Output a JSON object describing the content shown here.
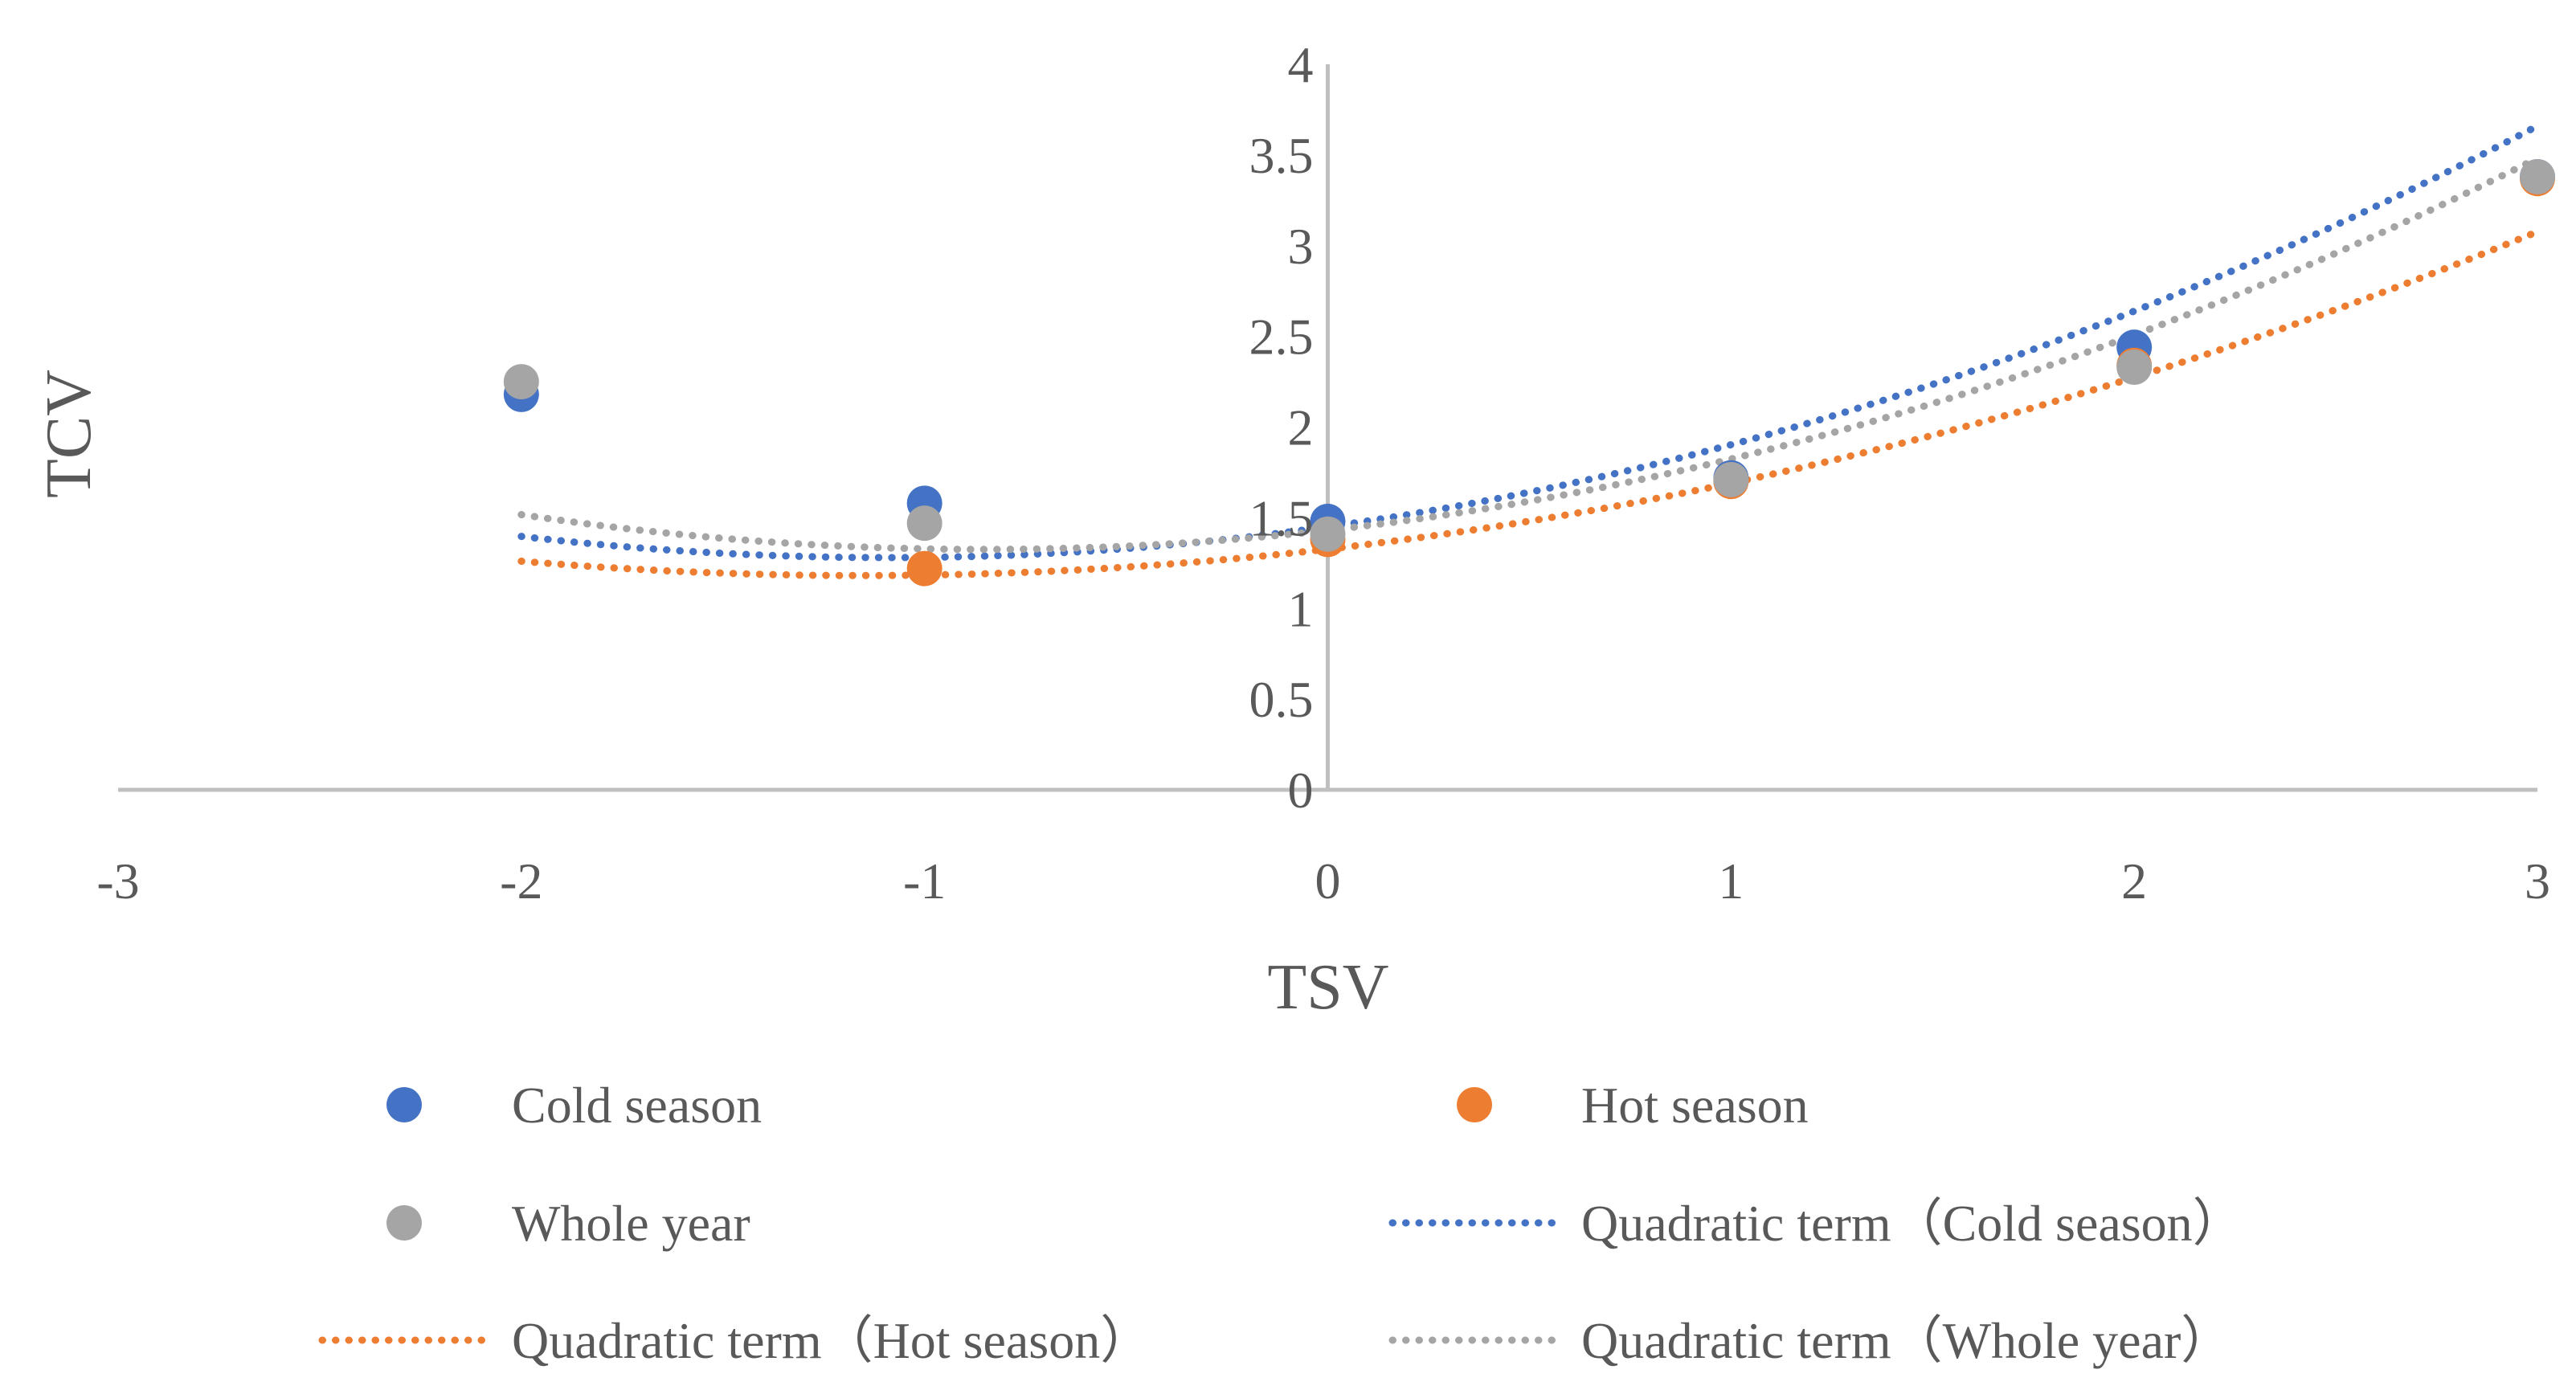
{
  "chart_data": {
    "type": "scatter",
    "title": "",
    "xlabel": "TSV",
    "ylabel": "TCV",
    "xlim": [
      -3,
      3
    ],
    "ylim": [
      0,
      4
    ],
    "x_ticks": [
      "-3",
      "-2",
      "-1",
      "0",
      "1",
      "2",
      "3"
    ],
    "y_ticks": [
      "0",
      "0.5",
      "1",
      "1.5",
      "2",
      "2.5",
      "3",
      "3.5",
      "4"
    ],
    "grid": false,
    "legend_position": "bottom",
    "series": [
      {
        "name": "Cold season",
        "kind": "points",
        "color": "#4472C4",
        "x": [
          -2,
          -1,
          0,
          1,
          2,
          3
        ],
        "y": [
          2.18,
          1.58,
          1.48,
          1.72,
          2.44,
          3.38
        ]
      },
      {
        "name": "Hot season",
        "kind": "points",
        "color": "#ED7D31",
        "x": [
          -1,
          0,
          1,
          2,
          3
        ],
        "y": [
          1.22,
          1.38,
          1.7,
          2.34,
          3.37
        ]
      },
      {
        "name": "Whole year",
        "kind": "points",
        "color": "#A5A5A5",
        "x": [
          -2,
          -1,
          0,
          1,
          2,
          3
        ],
        "y": [
          2.25,
          1.47,
          1.41,
          1.71,
          2.33,
          3.38
        ]
      }
    ],
    "trendlines": [
      {
        "name": "Quadratic term（Cold season）",
        "color": "#4472C4",
        "coefficients": {
          "a": 0.142,
          "b": 0.3105,
          "c": 1.45
        },
        "x_range": [
          -2,
          3
        ]
      },
      {
        "name": "Quadratic term（Hot season）",
        "color": "#ED7D31",
        "coefficients": {
          "a": 0.11,
          "b": 0.2533,
          "c": 1.327
        },
        "x_range": [
          -2,
          3
        ]
      },
      {
        "name": "Quadratic term（Whole year）",
        "color": "#A5A5A5",
        "coefficients": {
          "a": 0.1454,
          "b": 0.2477,
          "c": 1.4308
        },
        "x_range": [
          -2,
          3
        ]
      }
    ],
    "legend": [
      {
        "label": "Cold season",
        "kind": "marker",
        "color": "#4472C4"
      },
      {
        "label": "Hot season",
        "kind": "marker",
        "color": "#ED7D31"
      },
      {
        "label": "Whole year",
        "kind": "marker",
        "color": "#A5A5A5"
      },
      {
        "label": "Quadratic term（Cold season）",
        "kind": "line",
        "color": "#4472C4"
      },
      {
        "label": "Quadratic term（Hot season）",
        "kind": "line",
        "color": "#ED7D31"
      },
      {
        "label": "Quadratic term（Whole year）",
        "kind": "line",
        "color": "#A5A5A5"
      }
    ]
  }
}
